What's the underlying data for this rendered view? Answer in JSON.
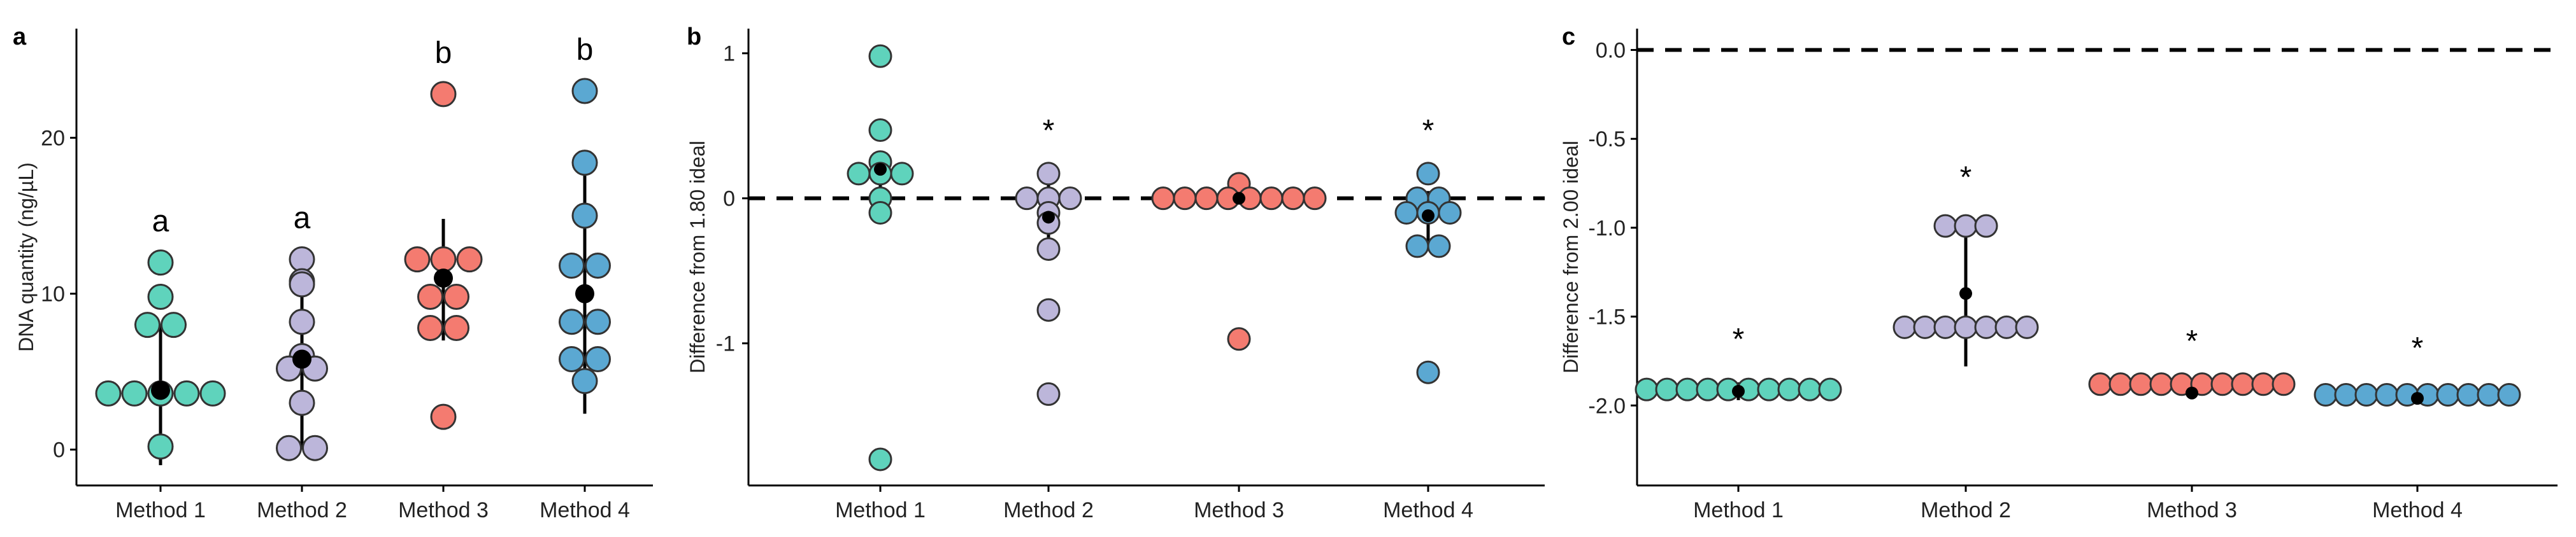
{
  "colors": {
    "Method 1": "#5fd3bc",
    "Method 2": "#bcb6da",
    "Method 3": "#f47b70",
    "Method 4": "#5ba8d2",
    "mean": "#000000"
  },
  "chart_data": [
    {
      "panel": "a",
      "type": "scatter",
      "categories": [
        "Method 1",
        "Method 2",
        "Method 3",
        "Method 4"
      ],
      "ylabel": "DNA quantity (ng/µL)",
      "xlabel": "",
      "ylim": [
        -2.3,
        27
      ],
      "yticks": [
        0,
        10,
        20
      ],
      "ytick_labels": [
        "0",
        "10",
        "20"
      ],
      "reference_line": null,
      "series": [
        {
          "name": "Method 1",
          "values": [
            12.0,
            9.8,
            8.0,
            8.0,
            3.6,
            3.6,
            3.6,
            3.6,
            3.6,
            0.2
          ],
          "mean": 3.8,
          "err_low": -1.0,
          "err_high": 8.0,
          "annotation": "a"
        },
        {
          "name": "Method 2",
          "values": [
            12.2,
            10.8,
            10.6,
            8.2,
            6.0,
            5.2,
            5.2,
            3.0,
            0.1,
            0.1
          ],
          "mean": 5.8,
          "err_low": 0.0,
          "err_high": 12.0,
          "annotation": "a"
        },
        {
          "name": "Method 3",
          "values": [
            22.8,
            12.2,
            12.2,
            12.2,
            9.8,
            9.8,
            7.8,
            7.8,
            2.1
          ],
          "mean": 11.0,
          "err_low": 7.0,
          "err_high": 14.8,
          "annotation": "b"
        },
        {
          "name": "Method 4",
          "values": [
            23.0,
            18.4,
            15.0,
            11.8,
            11.8,
            8.2,
            8.2,
            5.8,
            5.8,
            4.4
          ],
          "mean": 10.0,
          "err_low": 2.3,
          "err_high": 17.8,
          "annotation": "b"
        }
      ]
    },
    {
      "panel": "b",
      "type": "scatter",
      "categories": [
        "Method 1",
        "Method 2",
        "Method 3",
        "Method 4"
      ],
      "ylabel": "Difference from 1.80 ideal",
      "xlabel": "",
      "ylim": [
        -1.98,
        1.17
      ],
      "yticks": [
        1,
        0,
        -1
      ],
      "ytick_labels": [
        "1",
        "0",
        "-1"
      ],
      "reference_line": 0,
      "series": [
        {
          "name": "Method 1",
          "values": [
            0.98,
            0.47,
            0.25,
            0.17,
            0.17,
            0.17,
            0.0,
            -0.1,
            -1.8
          ],
          "mean": 0.2,
          "err_low": 0.02,
          "err_high": 0.28,
          "annotation": ""
        },
        {
          "name": "Method 2",
          "values": [
            0.17,
            0.0,
            0.0,
            0.0,
            -0.1,
            -0.17,
            -0.35,
            -0.77,
            -1.35
          ],
          "mean": -0.13,
          "err_low": -0.38,
          "err_high": 0.14,
          "annotation": "*"
        },
        {
          "name": "Method 3",
          "values": [
            0.1,
            0.0,
            0.0,
            0.0,
            0.0,
            0.0,
            0.0,
            0.0,
            0.0,
            -0.97
          ],
          "mean": 0.0,
          "err_low": -0.02,
          "err_high": 0.02,
          "annotation": ""
        },
        {
          "name": "Method 4",
          "values": [
            0.17,
            0.0,
            0.0,
            -0.1,
            -0.1,
            -0.1,
            -0.33,
            -0.33,
            -1.2
          ],
          "mean": -0.12,
          "err_low": -0.3,
          "err_high": 0.05,
          "annotation": "*"
        }
      ]
    },
    {
      "panel": "c",
      "type": "scatter",
      "categories": [
        "Method 1",
        "Method 2",
        "Method 3",
        "Method 4"
      ],
      "ylabel": "Difference from 2.00 ideal",
      "xlabel": "",
      "ylim": [
        -2.45,
        0.12
      ],
      "yticks": [
        0.0,
        -0.5,
        -1.0,
        -1.5,
        -2.0
      ],
      "ytick_labels": [
        "0.0",
        "-0.5",
        "-1.0",
        "-1.5",
        "-2.0"
      ],
      "reference_line": 0,
      "series": [
        {
          "name": "Method 1",
          "values": [
            -1.91,
            -1.91,
            -1.91,
            -1.91,
            -1.91,
            -1.91,
            -1.91,
            -1.91,
            -1.91,
            -1.91
          ],
          "mean": -1.92,
          "err_low": -1.97,
          "err_high": -1.87,
          "annotation": "*"
        },
        {
          "name": "Method 2",
          "values": [
            -0.99,
            -0.99,
            -0.99,
            -1.56,
            -1.56,
            -1.56,
            -1.56,
            -1.56,
            -1.56,
            -1.56
          ],
          "mean": -1.37,
          "err_low": -1.78,
          "err_high": -0.96,
          "annotation": "*"
        },
        {
          "name": "Method 3",
          "values": [
            -1.88,
            -1.88,
            -1.88,
            -1.88,
            -1.88,
            -1.88,
            -1.88,
            -1.88,
            -1.88,
            -1.88
          ],
          "mean": -1.93,
          "err_low": -1.93,
          "err_high": -1.88,
          "annotation": "*"
        },
        {
          "name": "Method 4",
          "values": [
            -1.94,
            -1.94,
            -1.94,
            -1.94,
            -1.94,
            -1.94,
            -1.94,
            -1.94,
            -1.94,
            -1.94
          ],
          "mean": -1.96,
          "err_low": -1.96,
          "err_high": -1.92,
          "annotation": "*"
        }
      ]
    }
  ]
}
